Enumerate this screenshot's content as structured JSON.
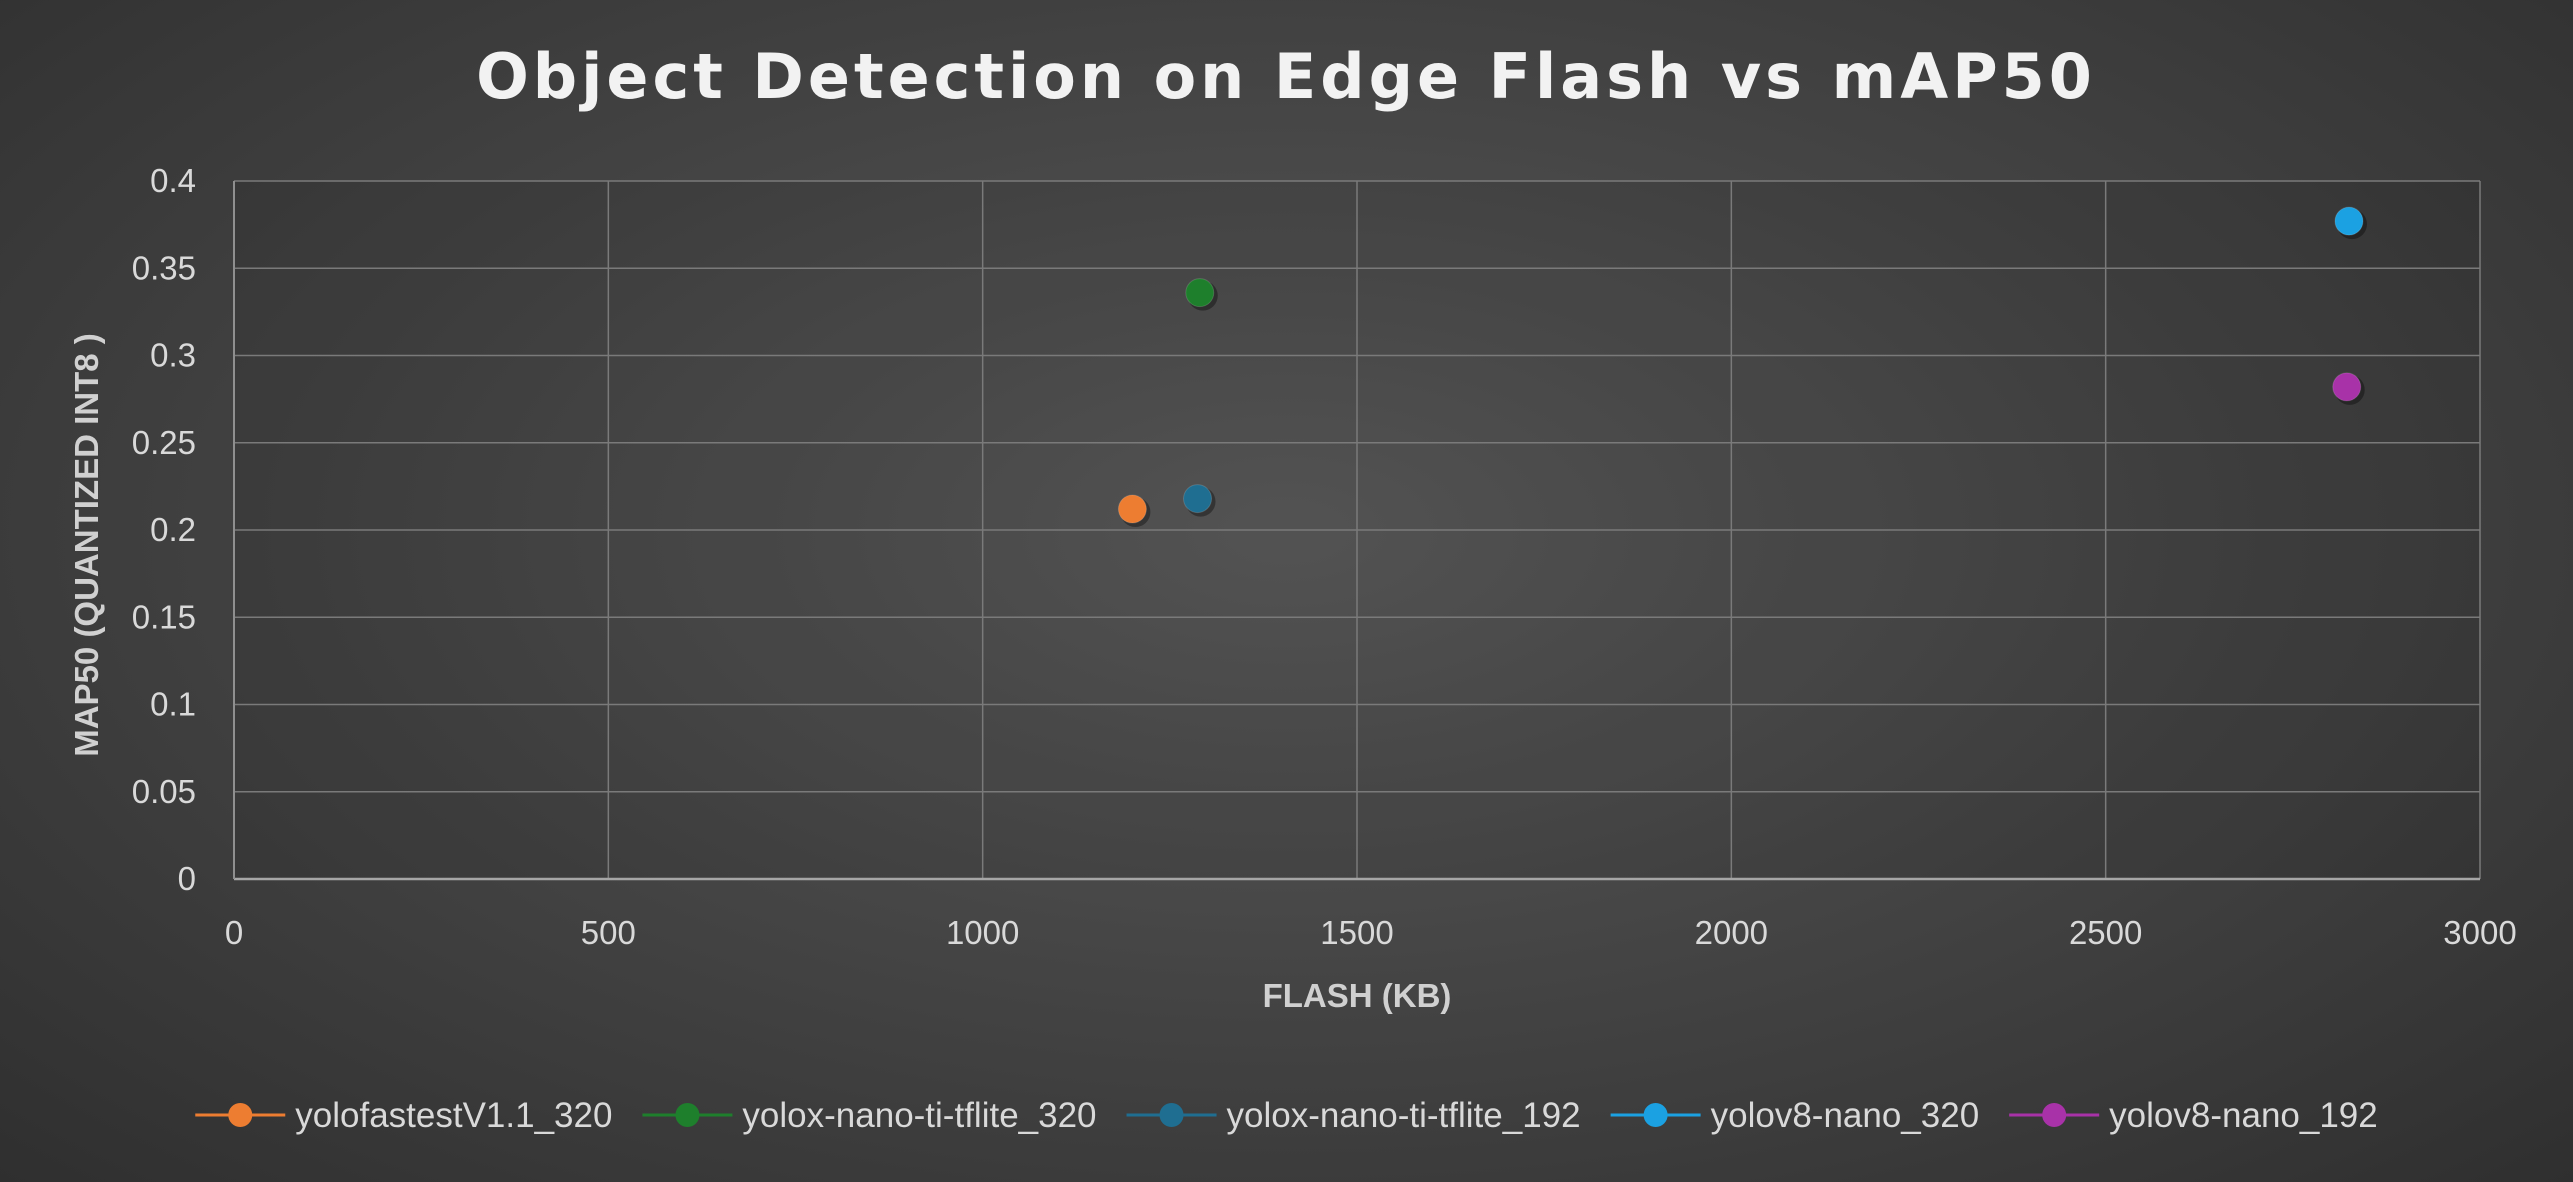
{
  "chart_data": {
    "type": "scatter",
    "title": "Object Detection on Edge Flash vs mAP50",
    "xlabel": "FLASH (KB)",
    "ylabel": "MAP50 (QUANTIZED INT8 )",
    "xlim": [
      0,
      3000
    ],
    "ylim": [
      0,
      0.4
    ],
    "x_ticks": [
      0,
      500,
      1000,
      1500,
      2000,
      2500,
      3000
    ],
    "y_ticks": [
      0,
      0.05,
      0.1,
      0.15,
      0.2,
      0.25,
      0.3,
      0.35,
      0.4
    ],
    "grid": true,
    "legend_position": "bottom",
    "series": [
      {
        "name": "yolofastestV1.1_320",
        "color": "#ed7d31",
        "points": [
          {
            "x": 1200,
            "y": 0.212
          }
        ]
      },
      {
        "name": "yolox-nano-ti-tflite_320",
        "color": "#1e7f2c",
        "points": [
          {
            "x": 1290,
            "y": 0.336
          }
        ]
      },
      {
        "name": "yolox-nano-ti-tflite_192",
        "color": "#1f6e91",
        "points": [
          {
            "x": 1287,
            "y": 0.218
          }
        ]
      },
      {
        "name": "yolov8-nano_320",
        "color": "#1ba1e2",
        "points": [
          {
            "x": 2825,
            "y": 0.377
          }
        ]
      },
      {
        "name": "yolov8-nano_192",
        "color": "#a832a8",
        "points": [
          {
            "x": 2822,
            "y": 0.282
          }
        ]
      }
    ]
  }
}
